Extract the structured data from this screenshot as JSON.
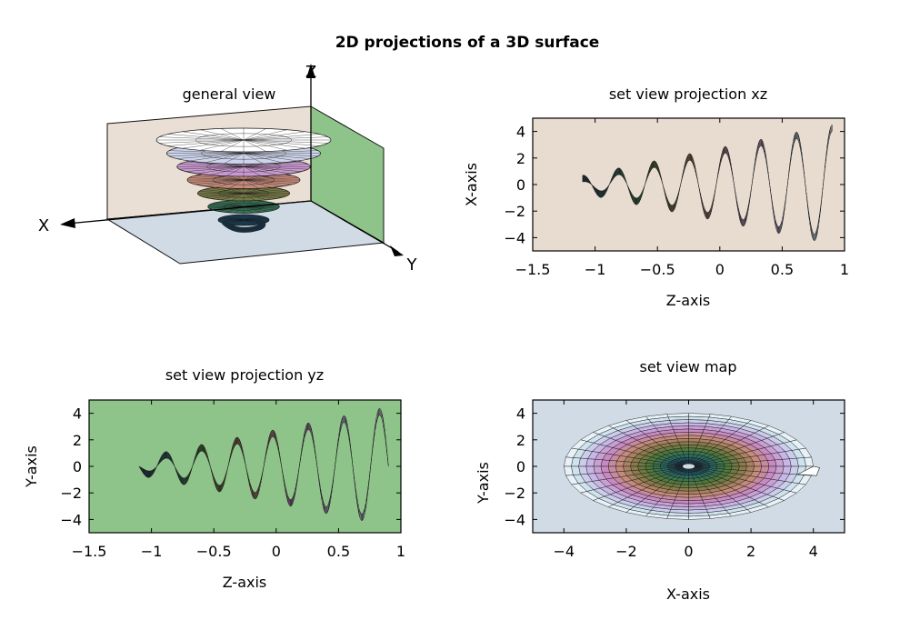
{
  "page_title": "2D projections of a 3D surface",
  "colors": {
    "xz_background": "#e8dcd1",
    "yz_background": "#8ec48a",
    "map_background": "#d0dbe5",
    "general_back_wall": "#eadfd4",
    "general_side_wall": "#8ec48a",
    "general_floor": "#d0dbe5",
    "mesh": "#1a1a1a"
  },
  "palette": [
    "#1a3b52",
    "#2a6d62",
    "#4f7a3b",
    "#8b7a4a",
    "#c58a7a",
    "#c88ac2",
    "#c8b6e6",
    "#cfe3ee",
    "#ffffff"
  ],
  "chart_data": [
    {
      "type": "surface",
      "panel": "general",
      "title": "general view",
      "axes": {
        "x": "X",
        "y": "Y",
        "z": "Z"
      },
      "surface": {
        "x_range": [
          -4,
          4
        ],
        "y_range": [
          -4,
          4
        ],
        "z_range": [
          -1.1,
          0.9
        ]
      }
    },
    {
      "type": "surface",
      "panel": "xz",
      "title": "set view projection xz",
      "xlabel": "Z-axis",
      "ylabel": "X-axis",
      "xlim": [
        -1.5,
        1
      ],
      "ylim": [
        -5,
        5
      ],
      "xticks": [
        "−1.5",
        "−1",
        "−0.5",
        "0",
        "0.5",
        "1"
      ],
      "yticks": [
        "4",
        "2",
        "0",
        "−2",
        "−4"
      ],
      "xtick_values": [
        -1.5,
        -1,
        -0.5,
        0,
        0.5,
        1
      ],
      "ytick_values": [
        4,
        2,
        0,
        -2,
        -4
      ],
      "surface": {
        "z_range": [
          -1.1,
          0.9
        ],
        "radius_range": [
          0.2,
          4.0
        ],
        "turns": 7
      }
    },
    {
      "type": "surface",
      "panel": "yz",
      "title": "set view projection yz",
      "xlabel": "Z-axis",
      "ylabel": "Y-axis",
      "xlim": [
        -1.5,
        1
      ],
      "ylim": [
        -5,
        5
      ],
      "xticks": [
        "−1.5",
        "−1",
        "−0.5",
        "0",
        "0.5",
        "1"
      ],
      "yticks": [
        "4",
        "2",
        "0",
        "−2",
        "−4"
      ],
      "xtick_values": [
        -1.5,
        -1,
        -0.5,
        0,
        0.5,
        1
      ],
      "ytick_values": [
        4,
        2,
        0,
        -2,
        -4
      ],
      "surface": {
        "z_range": [
          -1.1,
          0.9
        ],
        "radius_range": [
          0.2,
          4.0
        ],
        "turns": 7
      }
    },
    {
      "type": "surface",
      "panel": "map",
      "title": "set view map",
      "xlabel": "X-axis",
      "ylabel": "Y-axis",
      "xlim": [
        -5,
        5
      ],
      "ylim": [
        -5,
        5
      ],
      "xticks": [
        "−4",
        "−2",
        "0",
        "2",
        "4"
      ],
      "yticks": [
        "4",
        "2",
        "0",
        "−2",
        "−4"
      ],
      "xtick_values": [
        -4,
        -2,
        0,
        2,
        4
      ],
      "ytick_values": [
        4,
        2,
        0,
        -2,
        -4
      ],
      "surface": {
        "radius_range": [
          0.2,
          4.0
        ],
        "turns": 1
      }
    }
  ]
}
